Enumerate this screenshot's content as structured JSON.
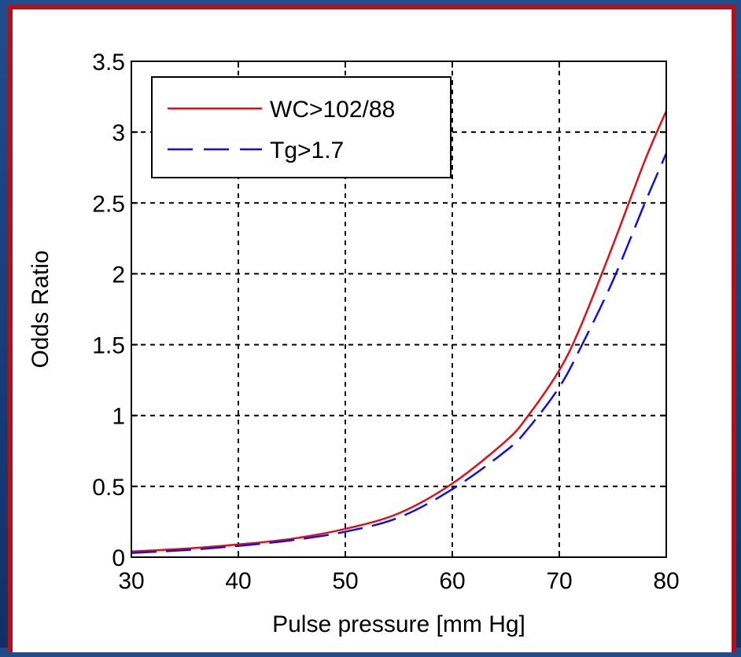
{
  "chart_data": {
    "type": "line",
    "xlabel": "Pulse pressure [mm Hg]",
    "ylabel": "Odds Ratio",
    "xlim": [
      30,
      80
    ],
    "ylim": [
      0,
      3.5
    ],
    "x_ticks": [
      "30",
      "40",
      "50",
      "60",
      "70",
      "80"
    ],
    "y_ticks": [
      "0",
      "0.5",
      "1",
      "1.5",
      "2",
      "2.5",
      "3",
      "3.5"
    ],
    "grid": true,
    "legend_position": "top-left",
    "series": [
      {
        "name": "WC>102/88",
        "color": "#e0101a",
        "style": "solid",
        "x": [
          30,
          35,
          40,
          45,
          50,
          55,
          60,
          65,
          67,
          70,
          72,
          75,
          78,
          80
        ],
        "y": [
          0.04,
          0.06,
          0.09,
          0.13,
          0.2,
          0.31,
          0.52,
          0.82,
          0.99,
          1.32,
          1.63,
          2.2,
          2.8,
          3.15
        ]
      },
      {
        "name": "Tg>1.7",
        "color": "#1010e0",
        "style": "dashed",
        "x": [
          30,
          35,
          40,
          45,
          50,
          55,
          60,
          65,
          67,
          70,
          72,
          75,
          78,
          80
        ],
        "y": [
          0.03,
          0.05,
          0.08,
          0.12,
          0.18,
          0.28,
          0.48,
          0.75,
          0.9,
          1.2,
          1.48,
          1.95,
          2.5,
          2.85
        ]
      }
    ]
  }
}
